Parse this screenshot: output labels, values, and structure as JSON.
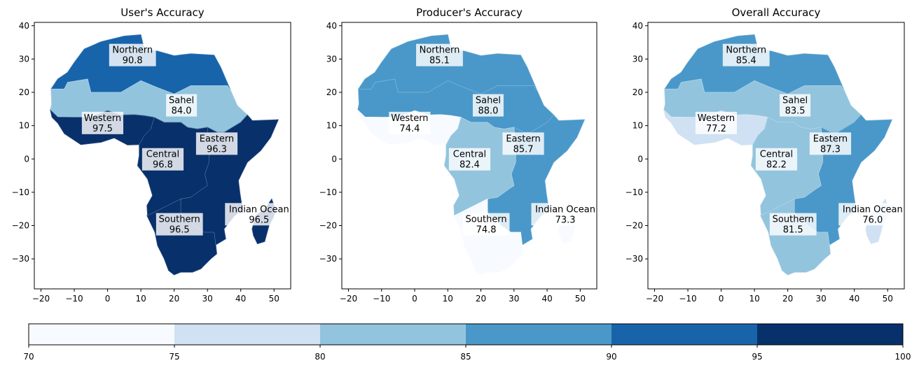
{
  "figure": {
    "panels": [
      {
        "title": "User's Accuracy"
      },
      {
        "title": "Producer's Accuracy"
      },
      {
        "title": "Overall Accuracy"
      }
    ]
  },
  "colormap": {
    "name": "Blues",
    "boundaries": [
      70,
      75,
      80,
      85,
      90,
      95,
      100
    ],
    "colors": [
      "#f7fbff",
      "#cfe1f2",
      "#93c4de",
      "#4a98c9",
      "#1764ab",
      "#08306b"
    ],
    "tick_labels": [
      "70",
      "75",
      "80",
      "85",
      "90",
      "95",
      "100"
    ]
  },
  "chart_data": [
    {
      "type": "choropleth",
      "title": "User's Accuracy",
      "xlim": [
        -22,
        55
      ],
      "ylim": [
        -39,
        41
      ],
      "xticks": [
        -20,
        -10,
        0,
        10,
        20,
        30,
        40,
        50
      ],
      "yticks": [
        -30,
        -20,
        -10,
        0,
        10,
        20,
        30,
        40
      ],
      "regions": [
        {
          "name": "Northern",
          "value": 90.8,
          "value_label": "90.8"
        },
        {
          "name": "Sahel",
          "value": 84.0,
          "value_label": "84.0"
        },
        {
          "name": "Western",
          "value": 97.5,
          "value_label": "97.5"
        },
        {
          "name": "Eastern",
          "value": 96.3,
          "value_label": "96.3"
        },
        {
          "name": "Central",
          "value": 96.8,
          "value_label": "96.8"
        },
        {
          "name": "Southern",
          "value": 96.5,
          "value_label": "96.5"
        },
        {
          "name": "Indian Ocean",
          "value": 96.5,
          "value_label": "96.5"
        }
      ]
    },
    {
      "type": "choropleth",
      "title": "Producer's Accuracy",
      "xlim": [
        -22,
        55
      ],
      "ylim": [
        -39,
        41
      ],
      "xticks": [
        -20,
        -10,
        0,
        10,
        20,
        30,
        40,
        50
      ],
      "yticks": [
        -30,
        -20,
        -10,
        0,
        10,
        20,
        30,
        40
      ],
      "regions": [
        {
          "name": "Northern",
          "value": 85.1,
          "value_label": "85.1"
        },
        {
          "name": "Sahel",
          "value": 88.0,
          "value_label": "88.0"
        },
        {
          "name": "Western",
          "value": 74.4,
          "value_label": "74.4"
        },
        {
          "name": "Eastern",
          "value": 85.7,
          "value_label": "85.7"
        },
        {
          "name": "Central",
          "value": 82.4,
          "value_label": "82.4"
        },
        {
          "name": "Southern",
          "value": 74.8,
          "value_label": "74.8"
        },
        {
          "name": "Indian Ocean",
          "value": 73.3,
          "value_label": "73.3"
        }
      ]
    },
    {
      "type": "choropleth",
      "title": "Overall Accuracy",
      "xlim": [
        -22,
        55
      ],
      "ylim": [
        -39,
        41
      ],
      "xticks": [
        -20,
        -10,
        0,
        10,
        20,
        30,
        40,
        50
      ],
      "yticks": [
        -30,
        -20,
        -10,
        0,
        10,
        20,
        30,
        40
      ],
      "regions": [
        {
          "name": "Northern",
          "value": 85.4,
          "value_label": "85.4"
        },
        {
          "name": "Sahel",
          "value": 83.5,
          "value_label": "83.5"
        },
        {
          "name": "Western",
          "value": 77.2,
          "value_label": "77.2"
        },
        {
          "name": "Eastern",
          "value": 87.3,
          "value_label": "87.3"
        },
        {
          "name": "Central",
          "value": 82.2,
          "value_label": "82.2"
        },
        {
          "name": "Southern",
          "value": 81.5,
          "value_label": "81.5"
        },
        {
          "name": "Indian Ocean",
          "value": 76.0,
          "value_label": "76.0"
        }
      ]
    }
  ]
}
